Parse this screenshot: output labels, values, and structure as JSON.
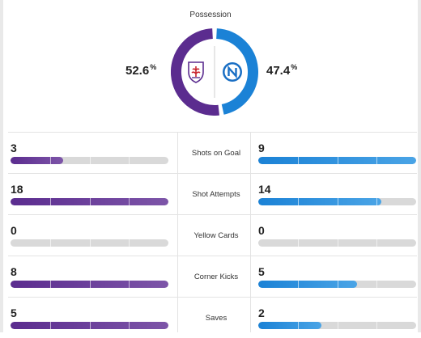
{
  "possession": {
    "title": "Possession",
    "home_value": "52.6",
    "away_value": "47.4",
    "percent_sign": "%",
    "home_share": 0.526,
    "away_share": 0.474
  },
  "teams": {
    "home_crest_icon": "fiorentina-crest-icon",
    "away_crest_icon": "napoli-crest-icon"
  },
  "colors": {
    "home": "#5b2c8f",
    "home_light": "#7d55a8",
    "away": "#1b82d6",
    "away_light": "#4aa4e6",
    "track": "#d9d9d9"
  },
  "stats": [
    {
      "label": "Shots on Goal",
      "home": "3",
      "away": "9",
      "home_fill": 0.333,
      "away_fill": 1.0
    },
    {
      "label": "Shot Attempts",
      "home": "18",
      "away": "14",
      "home_fill": 1.0,
      "away_fill": 0.778
    },
    {
      "label": "Yellow Cards",
      "home": "0",
      "away": "0",
      "home_fill": 0.0,
      "away_fill": 0.0
    },
    {
      "label": "Corner Kicks",
      "home": "8",
      "away": "5",
      "home_fill": 1.0,
      "away_fill": 0.625
    },
    {
      "label": "Saves",
      "home": "5",
      "away": "2",
      "home_fill": 1.0,
      "away_fill": 0.4
    }
  ]
}
